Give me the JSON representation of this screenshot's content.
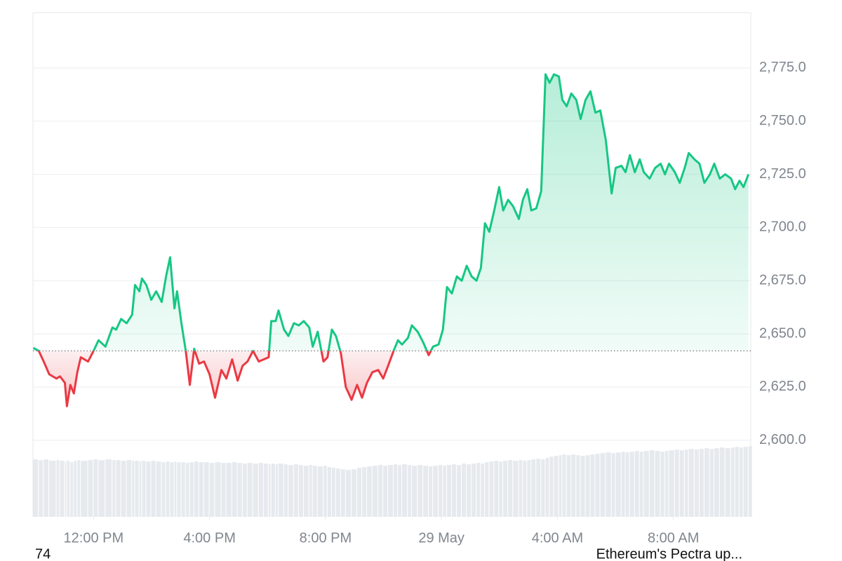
{
  "chart_data": {
    "type": "line",
    "x": [
      9.92,
      10.11,
      10.28,
      10.47,
      10.72,
      10.84,
      11.01,
      11.08,
      11.2,
      11.32,
      11.44,
      11.56,
      11.81,
      12.0,
      12.17,
      12.41,
      12.65,
      12.78,
      12.95,
      13.14,
      13.33,
      13.43,
      13.58,
      13.67,
      13.82,
      13.99,
      14.16,
      14.35,
      14.5,
      14.64,
      14.79,
      14.88,
      15.03,
      15.18,
      15.32,
      15.47,
      15.64,
      15.81,
      16.0,
      16.19,
      16.41,
      16.58,
      16.78,
      16.97,
      17.14,
      17.31,
      17.5,
      17.7,
      17.87,
      18.04,
      18.13,
      18.28,
      18.38,
      18.57,
      18.72,
      18.91,
      19.08,
      19.25,
      19.44,
      19.56,
      19.73,
      19.93,
      20.07,
      20.22,
      20.36,
      20.53,
      20.7,
      20.9,
      21.09,
      21.26,
      21.43,
      21.62,
      21.82,
      21.99,
      22.16,
      22.35,
      22.5,
      22.64,
      22.84,
      22.98,
      23.18,
      23.37,
      23.56,
      23.71,
      23.9,
      24.05,
      24.19,
      24.36,
      24.53,
      24.7,
      24.87,
      25.04,
      25.21,
      25.36,
      25.5,
      25.65,
      25.82,
      25.99,
      26.13,
      26.3,
      26.47,
      26.67,
      26.81,
      26.96,
      27.1,
      27.27,
      27.44,
      27.59,
      27.73,
      27.88,
      28.05,
      28.17,
      28.32,
      28.48,
      28.65,
      28.8,
      28.97,
      29.14,
      29.31,
      29.48,
      29.67,
      29.87,
      30.01,
      30.21,
      30.35,
      30.5,
      30.67,
      30.84,
      30.98,
      31.18,
      31.37,
      31.56,
      31.71,
      31.85,
      32.05,
      32.22,
      32.39,
      32.53,
      32.73,
      32.9,
      33.07,
      33.26,
      33.41,
      33.6,
      33.79,
      33.99,
      34.13,
      34.28,
      34.42,
      34.59
    ],
    "values": [
      2643.4,
      2642,
      2637,
      2631,
      2629,
      2630,
      2627,
      2616,
      2626,
      2622,
      2632,
      2639,
      2637,
      2642,
      2647,
      2644,
      2653,
      2652,
      2657,
      2655,
      2659,
      2673,
      2670,
      2676,
      2673,
      2666,
      2670,
      2665,
      2677,
      2686,
      2662,
      2670,
      2655,
      2642,
      2626,
      2643,
      2636,
      2637,
      2631,
      2620,
      2633,
      2629,
      2638,
      2628,
      2635,
      2637,
      2642,
      2637,
      2638,
      2639,
      2656,
      2656,
      2661,
      2652,
      2649,
      2655,
      2654,
      2656,
      2653,
      2644,
      2651,
      2637,
      2639,
      2652,
      2649,
      2641,
      2625,
      2619,
      2626,
      2620,
      2627,
      2632,
      2633,
      2629,
      2635,
      2642,
      2647,
      2645,
      2648,
      2654,
      2651,
      2646,
      2640,
      2644,
      2645,
      2652,
      2672,
      2669,
      2677,
      2675,
      2682,
      2677,
      2675,
      2681,
      2702,
      2698,
      2708,
      2719,
      2708,
      2713,
      2710,
      2704,
      2713,
      2718,
      2708,
      2709,
      2717,
      2772,
      2768,
      2772,
      2771,
      2760,
      2757,
      2763,
      2760,
      2751,
      2760,
      2764,
      2754,
      2755,
      2741,
      2716,
      2728,
      2729,
      2726,
      2734,
      2726,
      2732,
      2726,
      2723,
      2728,
      2730,
      2725,
      2730,
      2726,
      2721,
      2728,
      2735,
      2732,
      2730,
      2721,
      2725,
      2730,
      2723,
      2725,
      2723,
      2718,
      2722,
      2719,
      2725
    ],
    "volume": [
      82,
      81,
      82,
      80,
      81,
      80,
      79,
      80,
      78,
      80,
      81,
      80,
      81,
      82,
      81,
      82,
      81,
      81,
      80,
      81,
      80,
      80,
      79,
      80,
      79,
      80,
      79,
      78,
      79,
      78,
      79,
      78,
      78,
      77,
      78,
      79,
      78,
      78,
      77,
      78,
      77,
      77,
      78,
      77,
      76,
      77,
      76,
      77,
      76,
      75,
      76,
      75,
      76,
      75,
      74,
      75,
      74,
      73,
      74,
      73,
      72,
      73,
      71,
      70,
      69,
      68,
      67,
      68,
      70,
      71,
      72,
      73,
      74,
      73,
      74,
      75,
      74,
      75,
      74,
      73,
      74,
      73,
      72,
      73,
      74,
      73,
      74,
      75,
      74,
      76,
      75,
      76,
      77,
      76,
      78,
      79,
      80,
      79,
      80,
      81,
      80,
      81,
      80,
      81,
      82,
      83,
      82,
      84,
      86,
      87,
      88,
      89,
      88,
      89,
      88,
      87,
      88,
      89,
      90,
      91,
      92,
      91,
      92,
      93,
      92,
      93,
      94,
      93,
      94,
      95,
      94,
      93,
      94,
      95,
      96,
      95,
      96,
      97,
      96,
      97,
      98,
      97,
      98,
      99,
      98,
      99,
      100,
      99,
      100,
      101
    ],
    "baseline": 2642,
    "xlim": [
      9.91,
      34.67
    ],
    "xticks": [
      {
        "value": 12,
        "label": "12:00 PM"
      },
      {
        "value": 16,
        "label": "4:00 PM"
      },
      {
        "value": 20,
        "label": "8:00 PM"
      },
      {
        "value": 24,
        "label": "29 May"
      },
      {
        "value": 28,
        "label": "4:00 AM"
      },
      {
        "value": 32,
        "label": "8:00 AM"
      }
    ],
    "ylim": [
      2564,
      2801
    ],
    "yticks": [
      {
        "value": 2600,
        "label": "2,600.0"
      },
      {
        "value": 2625,
        "label": "2,625.0"
      },
      {
        "value": 2650,
        "label": "2,650.0"
      },
      {
        "value": 2675,
        "label": "2,675.0"
      },
      {
        "value": 2700,
        "label": "2,700.0"
      },
      {
        "value": 2725,
        "label": "2,725.0"
      },
      {
        "value": 2750,
        "label": "2,750.0"
      },
      {
        "value": 2775,
        "label": "2,775.0"
      }
    ],
    "y2lim": [
      0,
      720
    ],
    "grid": true,
    "up_color": "#16c784",
    "down_color": "#ea3943",
    "volume_color": "#e6eaee",
    "annotations": [
      "74",
      "Ethereum's Pectra up..."
    ]
  }
}
